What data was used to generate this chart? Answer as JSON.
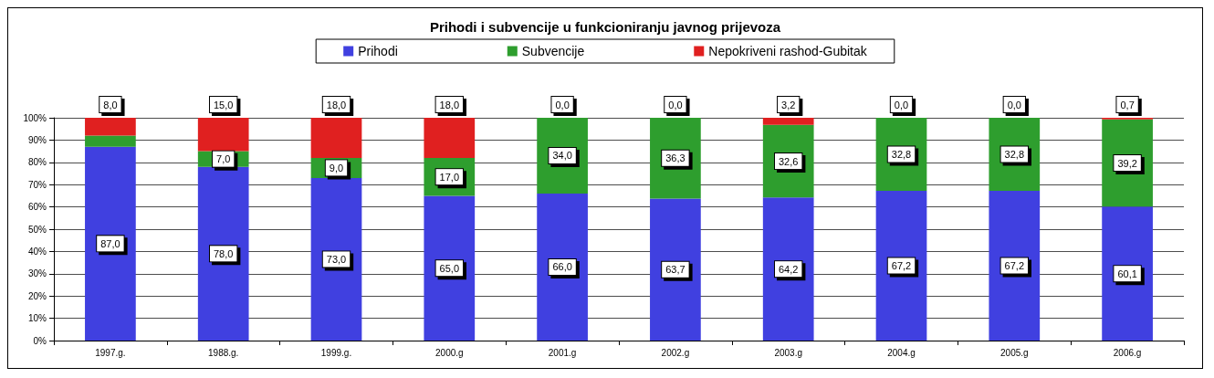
{
  "chart_data": {
    "type": "bar",
    "title": "Prihodi i subvencije u funkcioniranju javnog prijevoza",
    "categories": [
      "1997.g.",
      "1988.g.",
      "1999.g.",
      "2000.g",
      "2001.g",
      "2002.g",
      "2003.g",
      "2004.g",
      "2005.g",
      "2006.g"
    ],
    "stacked": true,
    "series": [
      {
        "name": "Prihodi",
        "color": "#4040e0",
        "values": [
          87.0,
          78.0,
          73.0,
          65.0,
          66.0,
          63.7,
          64.2,
          67.2,
          67.2,
          60.1
        ],
        "value_labels": [
          "87,0",
          "78,0",
          "73,0",
          "65,0",
          "66,0",
          "63,7",
          "64,2",
          "67,2",
          "67,2",
          "60,1"
        ]
      },
      {
        "name": "Subvencije",
        "color": "#2e9e2e",
        "values": [
          5,
          7.0,
          9.0,
          17.0,
          34.0,
          36.3,
          32.6,
          32.8,
          32.8,
          39.2
        ],
        "value_labels": [
          null,
          "7,0",
          "9,0",
          "17,0",
          "34,0",
          "36,3",
          "32,6",
          "32,8",
          "32,8",
          "39,2"
        ]
      },
      {
        "name": "Nepokriveni rashod-Gubitak",
        "color": "#e02020",
        "values": [
          8.0,
          15.0,
          18.0,
          18.0,
          0.0,
          0.0,
          3.2,
          0.0,
          0.0,
          0.7
        ],
        "value_labels": [
          "8,0",
          "15,0",
          "18,0",
          "18,0",
          "0,0",
          "0,0",
          "3,2",
          "0,0",
          "0,0",
          "0,7"
        ]
      }
    ],
    "ylim": [
      0,
      100
    ],
    "yticks": [
      {
        "value": 0,
        "label": "0%"
      },
      {
        "value": 10,
        "label": "10%"
      },
      {
        "value": 20,
        "label": "20%"
      },
      {
        "value": 30,
        "label": "30%"
      },
      {
        "value": 40,
        "label": "40%"
      },
      {
        "value": 50,
        "label": "50%"
      },
      {
        "value": 60,
        "label": "60%"
      },
      {
        "value": 70,
        "label": "70%"
      },
      {
        "value": 80,
        "label": "80%"
      },
      {
        "value": 90,
        "label": "90%"
      },
      {
        "value": 100,
        "label": "100%"
      }
    ],
    "grid": "y",
    "legend": "top"
  }
}
